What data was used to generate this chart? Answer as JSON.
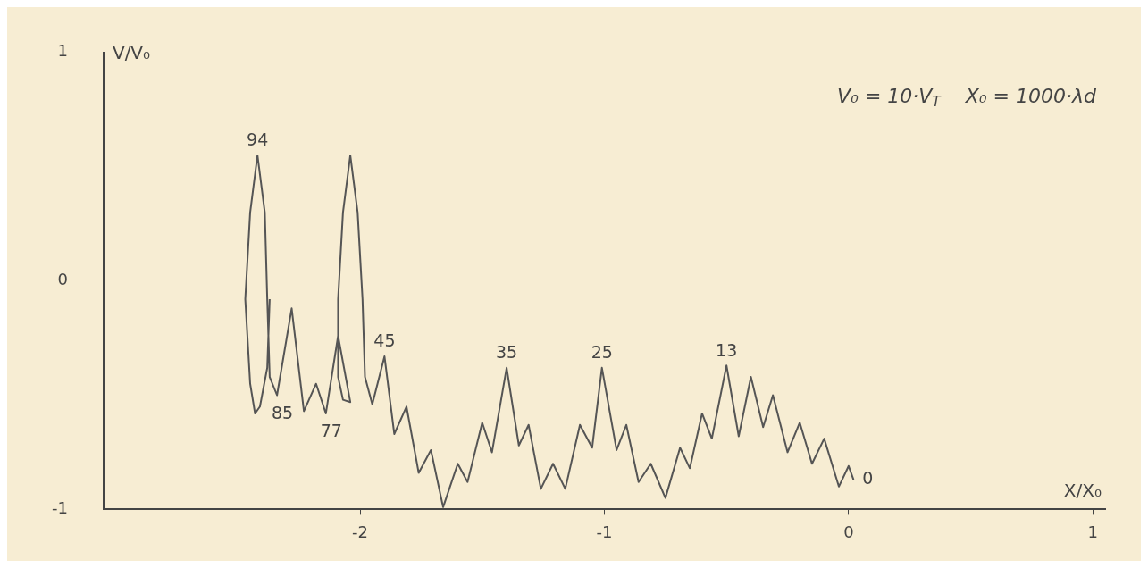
{
  "chart_data": {
    "type": "line",
    "xlabel": "X/X₀",
    "ylabel": "V/V₀",
    "annotations": [
      "V₀ = 10·V$_{T}$    X₀ = 1000·λd",
      {
        "text": "94",
        "x": -2.42,
        "y": 0.55
      },
      {
        "text": "85",
        "x": -2.34,
        "y": -0.5
      },
      {
        "text": "77",
        "x": -2.14,
        "y": -0.58
      },
      {
        "text": "45",
        "x": -1.9,
        "y": -0.33
      },
      {
        "text": "35",
        "x": -1.4,
        "y": -0.38
      },
      {
        "text": "25",
        "x": -1.01,
        "y": -0.38
      },
      {
        "text": "13",
        "x": -0.5,
        "y": -0.37
      },
      {
        "text": "0",
        "x": 0.02,
        "y": -0.87
      }
    ],
    "series": [
      {
        "color": "#555555",
        "x": [
          0.02,
          0,
          -0.04,
          -0.1,
          -0.15,
          -0.2,
          -0.25,
          -0.31,
          -0.35,
          -0.4,
          -0.45,
          -0.5,
          -0.56,
          -0.6,
          -0.65,
          -0.69,
          -0.75,
          -0.81,
          -0.86,
          -0.91,
          -0.95,
          -1.01,
          -1.05,
          -1.1,
          -1.16,
          -1.21,
          -1.26,
          -1.31,
          -1.35,
          -1.4,
          -1.46,
          -1.5,
          -1.56,
          -1.6,
          -1.66,
          -1.71,
          -1.76,
          -1.81,
          -1.86,
          -1.9,
          -1.95,
          -1.98,
          -1.99,
          -2.01,
          -2.04,
          -2.07,
          -2.09,
          -2.09,
          -2.07,
          -2.04,
          -2.09,
          -2.14,
          -2.18,
          -2.23,
          -2.28,
          -2.34,
          -2.37,
          -2.38,
          -2.39,
          -2.42,
          -2.45,
          -2.47,
          -2.45,
          -2.43,
          -2.41,
          -2.38,
          -2.37
        ],
        "values": [
          -0.87,
          -0.81,
          -0.9,
          -0.69,
          -0.8,
          -0.62,
          -0.75,
          -0.5,
          -0.64,
          -0.42,
          -0.68,
          -0.37,
          -0.69,
          -0.58,
          -0.82,
          -0.73,
          -0.95,
          -0.8,
          -0.88,
          -0.63,
          -0.74,
          -0.38,
          -0.73,
          -0.63,
          -0.91,
          -0.8,
          -0.91,
          -0.63,
          -0.72,
          -0.38,
          -0.75,
          -0.62,
          -0.88,
          -0.8,
          -0.99,
          -0.74,
          -0.84,
          -0.55,
          -0.67,
          -0.33,
          -0.54,
          -0.42,
          -0.08,
          0.3,
          0.55,
          0.3,
          -0.08,
          -0.42,
          -0.52,
          -0.53,
          -0.24,
          -0.58,
          -0.45,
          -0.57,
          -0.12,
          -0.5,
          -0.42,
          -0.08,
          0.3,
          0.55,
          0.3,
          -0.08,
          -0.45,
          -0.58,
          -0.55,
          -0.38,
          -0.08
        ]
      }
    ],
    "xlim": [
      -3.05,
      1.05
    ],
    "xticks": [
      -2,
      -1,
      0,
      1
    ],
    "ylim": [
      -1,
      1
    ],
    "yticks": [
      -1,
      0,
      1
    ],
    "grid": false,
    "legend": false,
    "marker": "none",
    "line_style": "solid"
  }
}
